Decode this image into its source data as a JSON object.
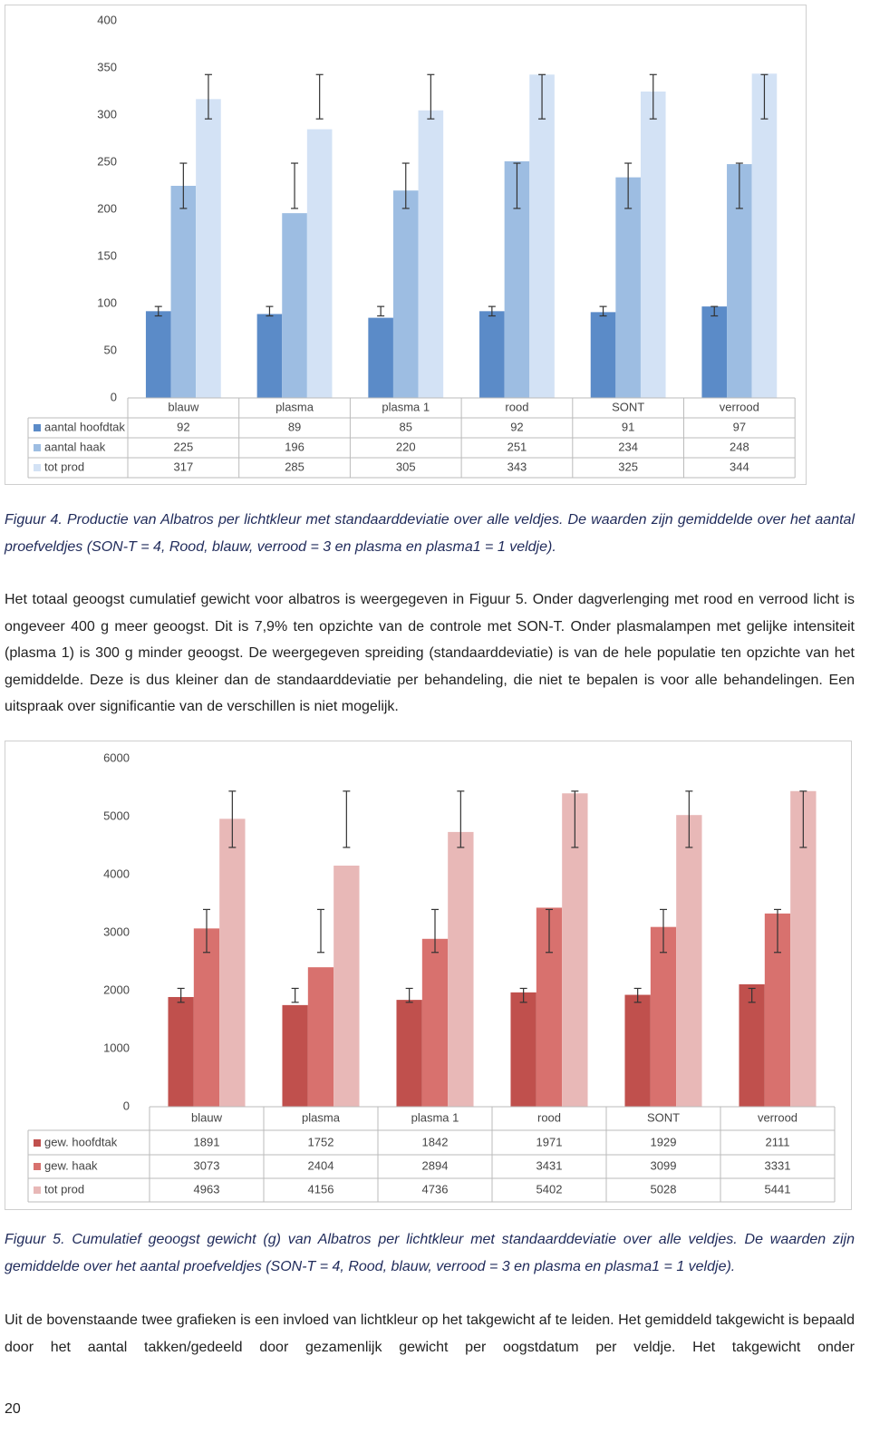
{
  "chart_data": [
    {
      "type": "bar",
      "categories": [
        "blauw",
        "plasma",
        "plasma 1",
        "rood",
        "SONT",
        "verrood"
      ],
      "series": [
        {
          "name": "aantal hoofdtak",
          "color": "#5b8bc8",
          "values": [
            92,
            89,
            85,
            92,
            91,
            97
          ],
          "error_low": [
            87,
            87,
            87,
            87,
            87,
            87
          ],
          "error_high": [
            97,
            97,
            97,
            97,
            97,
            97
          ]
        },
        {
          "name": "aantal haak",
          "color": "#9dbde2",
          "values": [
            225,
            196,
            220,
            251,
            234,
            248
          ],
          "error_low": [
            201,
            201,
            201,
            201,
            201,
            201
          ],
          "error_high": [
            249,
            249,
            249,
            249,
            249,
            249
          ]
        },
        {
          "name": "tot prod",
          "color": "#d3e2f5",
          "values": [
            317,
            285,
            305,
            343,
            325,
            344
          ],
          "error_low": [
            296,
            296,
            296,
            296,
            296,
            296
          ],
          "error_high": [
            343,
            343,
            343,
            343,
            343,
            343
          ]
        }
      ],
      "ylim": [
        0,
        400
      ],
      "yticks": [
        0,
        50,
        100,
        150,
        200,
        250,
        300,
        350,
        400
      ],
      "grid": false,
      "data_table": true
    },
    {
      "type": "bar",
      "categories": [
        "blauw",
        "plasma",
        "plasma 1",
        "rood",
        "SONT",
        "verrood"
      ],
      "series": [
        {
          "name": "gew. hoofdtak",
          "color": "#c0504d",
          "values": [
            1891,
            1752,
            1842,
            1971,
            1929,
            2111
          ],
          "error_low": [
            1800,
            1800,
            1800,
            1800,
            1800,
            1800
          ],
          "error_high": [
            2040,
            2040,
            2040,
            2040,
            2040,
            2040
          ]
        },
        {
          "name": "gew. haak",
          "color": "#d8716e",
          "values": [
            3073,
            2404,
            2894,
            3431,
            3099,
            3331
          ],
          "error_low": [
            2660,
            2660,
            2660,
            2660,
            2660,
            2660
          ],
          "error_high": [
            3400,
            3400,
            3400,
            3400,
            3400,
            3400
          ]
        },
        {
          "name": "tot prod",
          "color": "#e8b8b7",
          "values": [
            4963,
            4156,
            4736,
            5402,
            5028,
            5441
          ],
          "error_low": [
            4470,
            4470,
            4470,
            4470,
            4470,
            4470
          ],
          "error_high": [
            5440,
            5440,
            5440,
            5440,
            5440,
            5440
          ]
        }
      ],
      "ylim": [
        0,
        6000
      ],
      "yticks": [
        0,
        1000,
        2000,
        3000,
        4000,
        5000,
        6000
      ],
      "grid": false,
      "data_table": true
    }
  ],
  "captions": [
    "Figuur 4. Productie van Albatros per lichtkleur met standaarddeviatie over alle veldjes. De waarden zijn gemiddelde over het aantal proefveldjes (SON-T = 4, Rood, blauw, verrood = 3 en plasma en plasma1 = 1 veldje).",
    "Figuur 5. Cumulatief geoogst gewicht (g) van Albatros per lichtkleur met standaarddeviatie over alle veldjes. De waarden zijn gemiddelde over het aantal proefveldjes (SON-T = 4, Rood, blauw, verrood = 3 en plasma en plasma1 = 1 veldje)."
  ],
  "paragraphs": [
    "Het totaal geoogst cumulatief gewicht voor albatros is weergegeven in Figuur 5. Onder dagverlenging met rood en verrood licht is ongeveer 400 g meer geoogst. Dit is 7,9% ten opzichte van de controle met SON-T. Onder plasmalampen met gelijke intensiteit (plasma 1) is 300 g minder geoogst. De weergegeven spreiding (standaarddeviatie) is van de hele populatie ten opzichte van het gemiddelde. Deze is dus kleiner dan de standaarddeviatie per behandeling, die niet te bepalen is voor alle behandelingen. Een uitspraak over significantie van de verschillen is niet mogelijk.",
    "Uit de bovenstaande twee grafieken is een invloed van lichtkleur op het takgewicht af te leiden. Het gemiddeld takgewicht is bepaald door het aantal takken/gedeeld door gezamenlijk gewicht per oogstdatum per veldje. Het takgewicht onder"
  ],
  "page_number": "20"
}
